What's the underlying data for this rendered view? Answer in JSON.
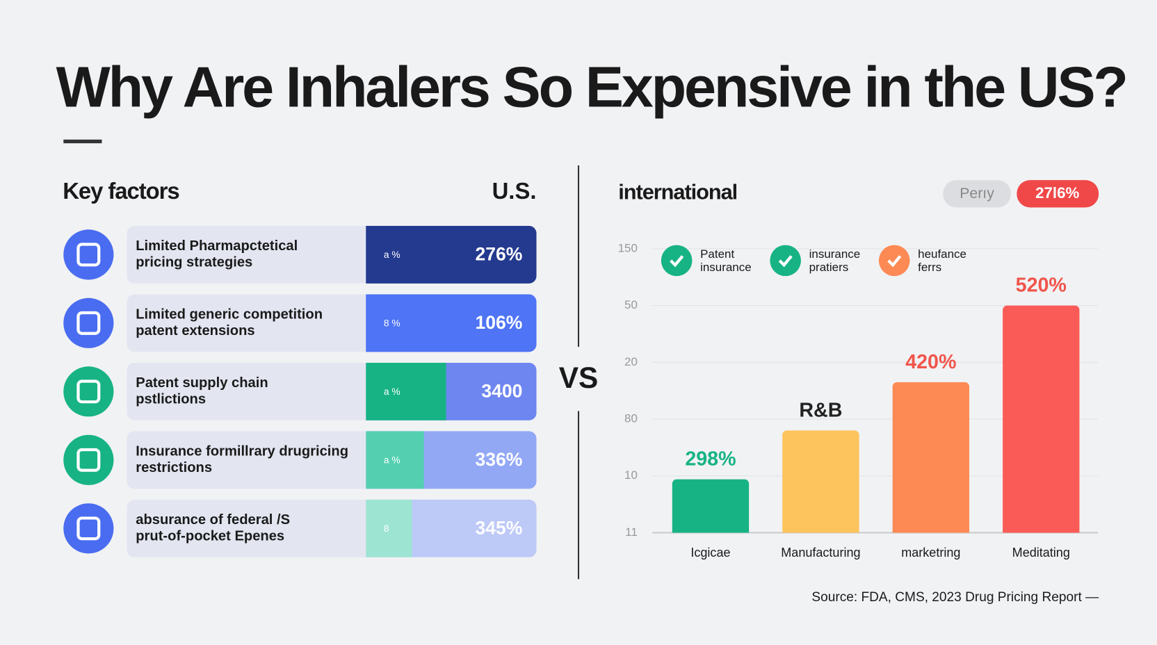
{
  "header": {
    "title": "Why Are Inhalers So Expensive in the US?"
  },
  "left": {
    "heading": "Key factors",
    "column": "U.S.",
    "factors": [
      {
        "lines": [
          "Limited Pharmapctetical",
          "pricing strategies"
        ],
        "tag": "a %",
        "value": "276%"
      },
      {
        "lines": [
          "Limited generic competition",
          "patent extensions"
        ],
        "tag": "8 %",
        "value": "106%"
      },
      {
        "lines": [
          "Patent supply chain",
          "pstlictions"
        ],
        "tag": "a %",
        "value": "3400"
      },
      {
        "lines": [
          "Insurance formillrary drugricing",
          "restrictions"
        ],
        "tag": "a %",
        "value": "336%"
      },
      {
        "lines": [
          "absurance of federal /S",
          "prut-of-pocket Epenes"
        ],
        "tag": "8",
        "value": "345%"
      }
    ]
  },
  "vs": "VS",
  "right": {
    "heading": "international",
    "pills": [
      "Perıy",
      "27l6%"
    ]
  },
  "chart_data": {
    "type": "bar",
    "categories": [
      "Icgicae",
      "Manufacturing",
      "marketring",
      "Meditating"
    ],
    "values": [
      0.94,
      1.8,
      2.65,
      4.0
    ],
    "annotations": [
      "298%",
      "R&B",
      "420%",
      "520%"
    ],
    "colors": [
      "#17b384",
      "#fdc35c",
      "#fd8a54",
      "#fb5b57"
    ],
    "annotation_colors": [
      "#17b384",
      "#222222",
      "#f0554b",
      "#f0554b"
    ],
    "ylim": [
      0,
      5
    ],
    "yticks": [
      {
        "value": 0,
        "label": "11"
      },
      {
        "value": 1,
        "label": "10"
      },
      {
        "value": 2,
        "label": "80"
      },
      {
        "value": 3,
        "label": "20"
      },
      {
        "value": 4,
        "label": "50"
      },
      {
        "value": 5,
        "label": "150"
      }
    ],
    "grid": true,
    "legend": [
      {
        "lines": [
          "Patent",
          "insurance"
        ],
        "color": "#17b384"
      },
      {
        "lines": [
          "insurance",
          "pratiers"
        ],
        "color": "#17b384"
      },
      {
        "lines": [
          "heufance",
          "ferrs"
        ],
        "color": "#fd8a54"
      }
    ]
  },
  "source": "Source: FDA, CMS, 2023 Drug Pricing Report —"
}
